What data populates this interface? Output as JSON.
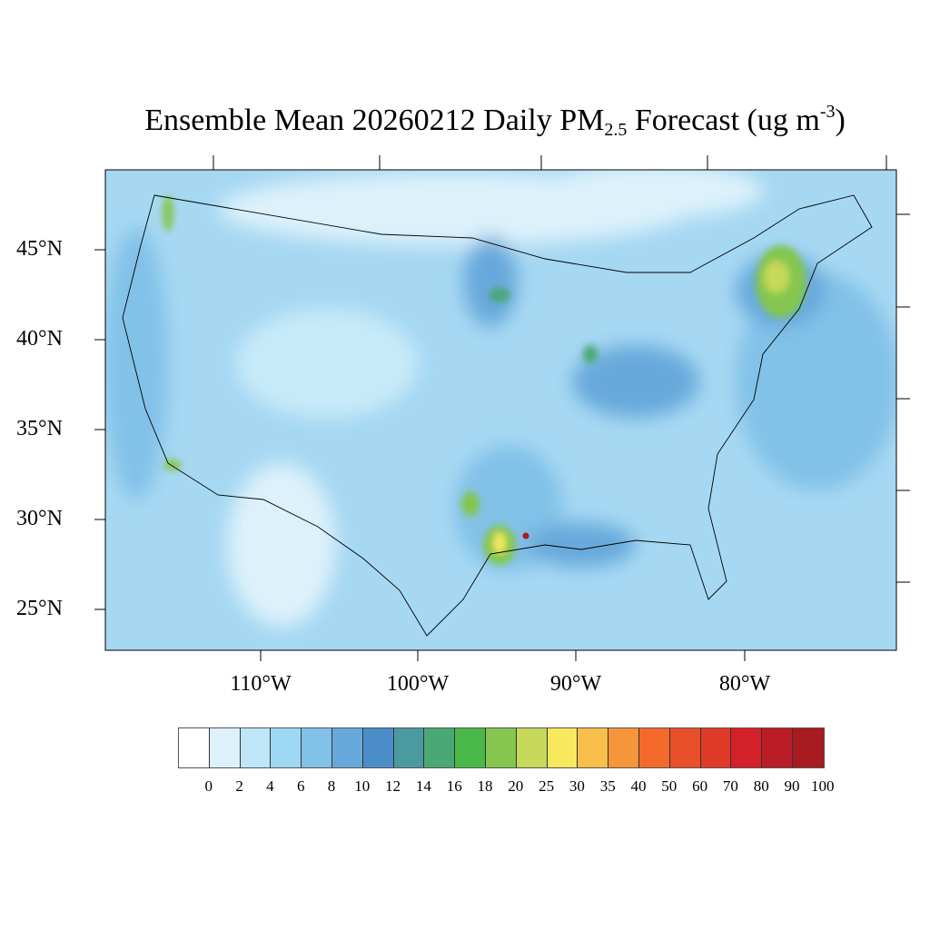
{
  "title": {
    "prefix": "Ensemble Mean 20260212 Daily PM",
    "sub": "2.5",
    "mid": " Forecast (ug m",
    "sup": "-3",
    "suffix": ")"
  },
  "map": {
    "lat_labels": [
      "45°N",
      "40°N",
      "35°N",
      "30°N",
      "25°N"
    ],
    "lon_labels": [
      "110°W",
      "100°W",
      "90°W",
      "80°W"
    ],
    "background_color": "#a6d8f2"
  },
  "colorbar": {
    "colors": [
      "#ffffff",
      "#ddf1fb",
      "#bfe6f8",
      "#9ed8f5",
      "#82c1e8",
      "#68a9db",
      "#4a8dc9",
      "#4a9ba0",
      "#4aa874",
      "#4ab848",
      "#84c650",
      "#c6d95a",
      "#f7e85e",
      "#f8bf4b",
      "#f7953a",
      "#f46a2b",
      "#e8502a",
      "#e03a28",
      "#d32029",
      "#ba1d26",
      "#a81b21",
      "#8f161b"
    ],
    "labels": [
      "0",
      "2",
      "4",
      "6",
      "8",
      "10",
      "12",
      "14",
      "16",
      "18",
      "20",
      "25",
      "30",
      "35",
      "40",
      "50",
      "60",
      "70",
      "80",
      "90",
      "100"
    ]
  }
}
